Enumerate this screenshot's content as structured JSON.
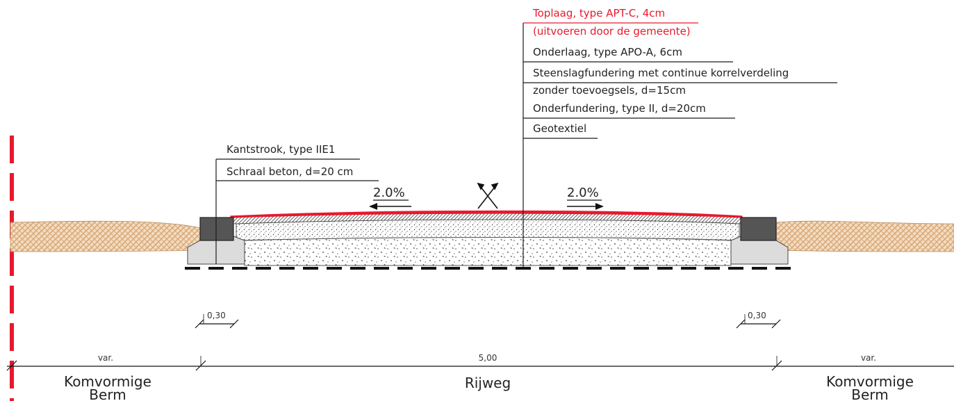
{
  "colors": {
    "accent_red": "#e8192c",
    "sand": "#d9a877",
    "curb": "#555555",
    "concrete": "#dcdcdc",
    "line": "#1a1a1a"
  },
  "layer_labels": [
    {
      "text": "Toplaag, type APT-C, 4cm",
      "color": "red"
    },
    {
      "text": "(uitvoeren door de gemeente)",
      "color": "red"
    },
    {
      "text": "Onderlaag, type APO-A, 6cm",
      "color": "black"
    },
    {
      "text": "Steenslagfundering met continue korrelverdeling",
      "color": "black"
    },
    {
      "text": "zonder toevoegsels, d=15cm",
      "color": "black"
    },
    {
      "text": "Onderfundering, type II, d=20cm",
      "color": "black"
    },
    {
      "text": "Geotextiel",
      "color": "black"
    }
  ],
  "curb_labels": [
    {
      "text": "Kantstrook, type IIE1"
    },
    {
      "text": "Schraal beton, d=20 cm"
    }
  ],
  "slopes": {
    "left": "2.0%",
    "right": "2.0%"
  },
  "dimensions": {
    "left_edge": "0,30",
    "right_edge": "0,30",
    "left_berm": "var.",
    "center": "5,00",
    "right_berm": "var."
  },
  "zones": {
    "left_line1": "Komvormige",
    "left_line2": "Berm",
    "center": "Rijweg",
    "right_line1": "Komvormige",
    "right_line2": "Berm"
  }
}
